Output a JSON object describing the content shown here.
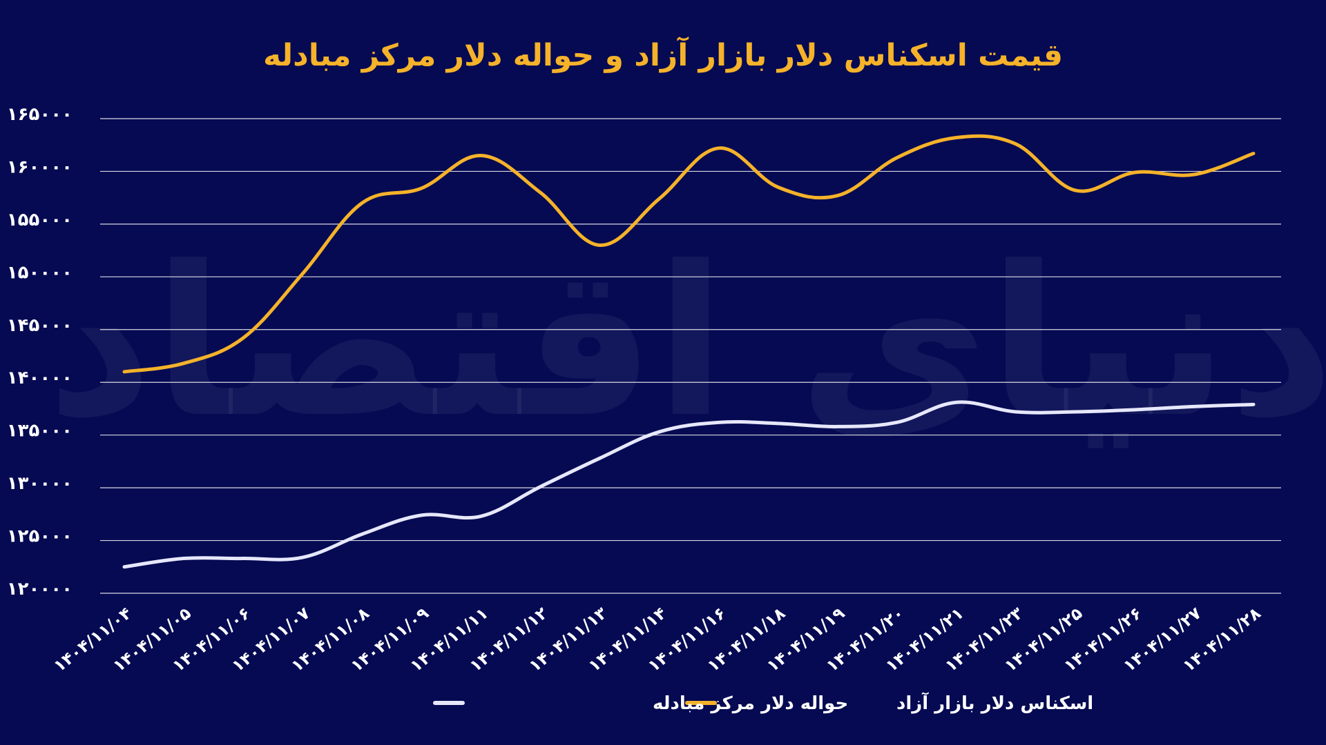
{
  "chart_data": {
    "type": "line",
    "title": "قیمت اسکناس دلار بازار آزاد و حواله دلار مرکز مبادله",
    "xlabel": "",
    "ylabel": "",
    "categories": [
      "۱۴۰۴/۱۱/۰۴",
      "۱۴۰۴/۱۱/۰۵",
      "۱۴۰۴/۱۱/۰۶",
      "۱۴۰۴/۱۱/۰۷",
      "۱۴۰۴/۱۱/۰۸",
      "۱۴۰۴/۱۱/۰۹",
      "۱۴۰۴/۱۱/۱۱",
      "۱۴۰۴/۱۱/۱۲",
      "۱۴۰۴/۱۱/۱۳",
      "۱۴۰۴/۱۱/۱۴",
      "۱۴۰۴/۱۱/۱۶",
      "۱۴۰۴/۱۱/۱۸",
      "۱۴۰۴/۱۱/۱۹",
      "۱۴۰۴/۱۱/۲۰",
      "۱۴۰۴/۱۱/۲۱",
      "۱۴۰۴/۱۱/۲۳",
      "۱۴۰۴/۱۱/۲۵",
      "۱۴۰۴/۱۱/۲۶",
      "۱۴۰۴/۱۱/۲۷",
      "۱۴۰۴/۱۱/۲۸"
    ],
    "yticks": [
      120000,
      125000,
      130000,
      135000,
      140000,
      145000,
      150000,
      155000,
      160000,
      165000
    ],
    "ytick_labels": [
      "۱۲۰۰۰۰",
      "۱۲۵۰۰۰",
      "۱۳۰۰۰۰",
      "۱۳۵۰۰۰",
      "۱۴۰۰۰۰",
      "۱۴۵۰۰۰",
      "۱۵۰۰۰۰",
      "۱۵۵۰۰۰",
      "۱۶۰۰۰۰",
      "۱۶۵۰۰۰"
    ],
    "ylim": [
      120000,
      165000
    ],
    "grid": true,
    "legend_position": "bottom",
    "series": [
      {
        "name": "اسکناس دلار بازار آزاد",
        "color": "#f5b22a",
        "values": [
          141000,
          141800,
          144200,
          150300,
          157000,
          158400,
          161500,
          158000,
          153000,
          157400,
          162200,
          158500,
          157700,
          161300,
          163200,
          162600,
          158200,
          159900,
          159700,
          161700
        ]
      },
      {
        "name": "حواله دلار مرکز مبادله",
        "color": "#e6e8fb",
        "values": [
          122500,
          123300,
          123300,
          123400,
          125600,
          127400,
          127300,
          130100,
          132800,
          135300,
          136200,
          136100,
          135800,
          136200,
          138100,
          137200,
          137200,
          137400,
          137700,
          137900
        ]
      }
    ]
  },
  "watermark": "دنیای اقتصاد"
}
